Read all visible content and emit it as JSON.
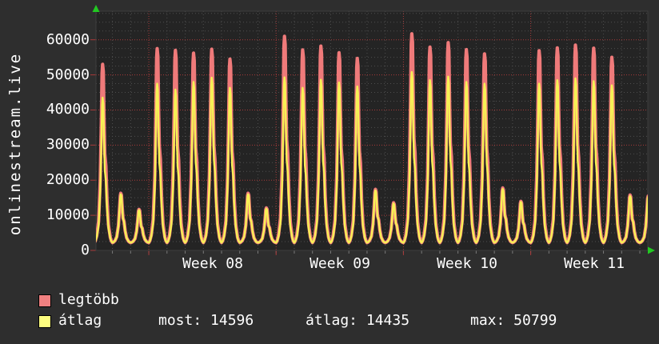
{
  "chart_data": {
    "type": "line",
    "title": "onlinestream.live",
    "x_axis": {
      "tick_labels": [
        "Week 08",
        "Week 09",
        "Week 10",
        "Week 11"
      ],
      "unit": "week",
      "minor_grid": "daily"
    },
    "y_axis": {
      "tick_labels": [
        "0",
        "10000",
        "20000",
        "30000",
        "40000",
        "50000",
        "60000"
      ],
      "tick_values": [
        0,
        10000,
        20000,
        30000,
        40000,
        50000,
        60000
      ],
      "minor_step": 2500,
      "visible_max": 68000
    },
    "grid": true,
    "legend_position": "bottom-left",
    "valley_value": 2200,
    "day_shape": [
      [
        0.0,
        0.0
      ],
      [
        0.06,
        0.01
      ],
      [
        0.14,
        0.04
      ],
      [
        0.24,
        0.12
      ],
      [
        0.33,
        0.35
      ],
      [
        0.39,
        0.68
      ],
      [
        0.43,
        0.95
      ],
      [
        0.46,
        1.0
      ],
      [
        0.5,
        0.96
      ],
      [
        0.54,
        0.7
      ],
      [
        0.58,
        0.5
      ],
      [
        0.64,
        0.43
      ],
      [
        0.7,
        0.24
      ],
      [
        0.78,
        0.1
      ],
      [
        0.88,
        0.03
      ],
      [
        0.94,
        0.01
      ],
      [
        1.0,
        0.0
      ]
    ],
    "series": [
      {
        "name": "legtöbb",
        "color": "#ef7a7a",
        "daily_peaks": [
          53000,
          16300,
          11700,
          57500,
          57000,
          56200,
          57300,
          54500,
          16300,
          12100,
          61000,
          57100,
          58200,
          56300,
          54700,
          17400,
          13600,
          61700,
          57900,
          59200,
          57200,
          56000,
          17800,
          14000,
          56900,
          57700,
          58500,
          57600,
          55000,
          15800,
          15500
        ]
      },
      {
        "name": "átlag",
        "color": "#f7f155",
        "daily_peaks": [
          43500,
          16000,
          11500,
          47500,
          45800,
          48000,
          49200,
          46300,
          16000,
          11900,
          49300,
          46300,
          48600,
          47800,
          46700,
          17100,
          13400,
          50800,
          48500,
          49500,
          48000,
          47500,
          17500,
          13800,
          47500,
          48500,
          49000,
          48200,
          47000,
          15500,
          15300
        ]
      }
    ],
    "stats": {
      "most": 14596,
      "atlag": 14435,
      "max": 50799
    }
  },
  "legend": {
    "items": [
      {
        "label": "legtöbb",
        "color": "#f08080"
      },
      {
        "label": "átlag",
        "color": "#ffff80"
      }
    ],
    "stats": [
      {
        "text": "most: 14596"
      },
      {
        "text": "átlag: 14435"
      },
      {
        "text": "max: 50799"
      }
    ]
  },
  "colors": {
    "background": "#2e2e2e",
    "plot_background": "#242424",
    "grid_minor": "#4e4e4e",
    "grid_major": "#a83a3a",
    "tick_minor": "#7a7a7a",
    "text": "#ffffff",
    "axis_arrow": "#22c822"
  }
}
